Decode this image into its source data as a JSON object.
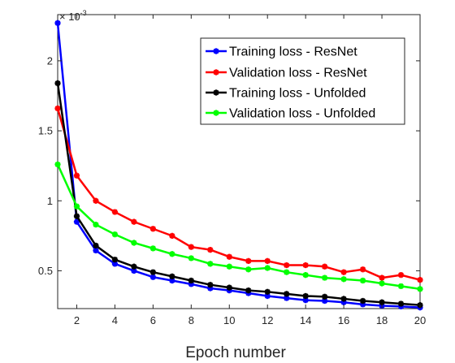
{
  "chart_data": {
    "type": "line",
    "title": "",
    "xlabel": "Epoch number",
    "ylabel": "",
    "xlim": [
      1,
      20
    ],
    "ylim": [
      0.00023,
      0.00233
    ],
    "xticks": [
      2,
      4,
      6,
      8,
      10,
      12,
      14,
      16,
      18,
      20
    ],
    "yticks": [
      0.0005,
      0.001,
      0.0015,
      0.002
    ],
    "ytick_labels": [
      "0.5",
      "1",
      "1.5",
      "2"
    ],
    "y_multiplier": {
      "base": "× 10",
      "exponent": "-3"
    },
    "grid": false,
    "legend_position": "top-right",
    "x": [
      1,
      2,
      3,
      4,
      5,
      6,
      7,
      8,
      9,
      10,
      11,
      12,
      13,
      14,
      15,
      16,
      17,
      18,
      19,
      20
    ],
    "series": [
      {
        "name": "Training loss - ResNet",
        "color": "#0000ff",
        "values": [
          0.00227,
          0.00085,
          0.000645,
          0.00055,
          0.0005,
          0.000455,
          0.00043,
          0.000405,
          0.000375,
          0.00036,
          0.00034,
          0.00032,
          0.000305,
          0.00029,
          0.000285,
          0.000275,
          0.00026,
          0.00025,
          0.000245,
          0.000238
        ]
      },
      {
        "name": "Validation loss - ResNet",
        "color": "#ff0000",
        "values": [
          0.00166,
          0.00118,
          0.001,
          0.00092,
          0.00085,
          0.0008,
          0.00075,
          0.00067,
          0.00065,
          0.0006,
          0.00057,
          0.00057,
          0.00054,
          0.00054,
          0.00053,
          0.00049,
          0.00051,
          0.00045,
          0.00047,
          0.000435
        ]
      },
      {
        "name": "Training loss - Unfolded",
        "color": "#000000",
        "values": [
          0.00184,
          0.00089,
          0.00068,
          0.00058,
          0.00053,
          0.00049,
          0.00046,
          0.00043,
          0.0004,
          0.00038,
          0.00036,
          0.00035,
          0.000335,
          0.00032,
          0.000315,
          0.0003,
          0.000285,
          0.000275,
          0.000265,
          0.000255
        ]
      },
      {
        "name": "Validation loss - Unfolded",
        "color": "#00ff00",
        "values": [
          0.00126,
          0.00096,
          0.00083,
          0.00076,
          0.0007,
          0.00066,
          0.00062,
          0.00059,
          0.00055,
          0.00053,
          0.00051,
          0.00052,
          0.00049,
          0.00047,
          0.00045,
          0.00044,
          0.00043,
          0.00041,
          0.00039,
          0.00037
        ]
      }
    ]
  }
}
